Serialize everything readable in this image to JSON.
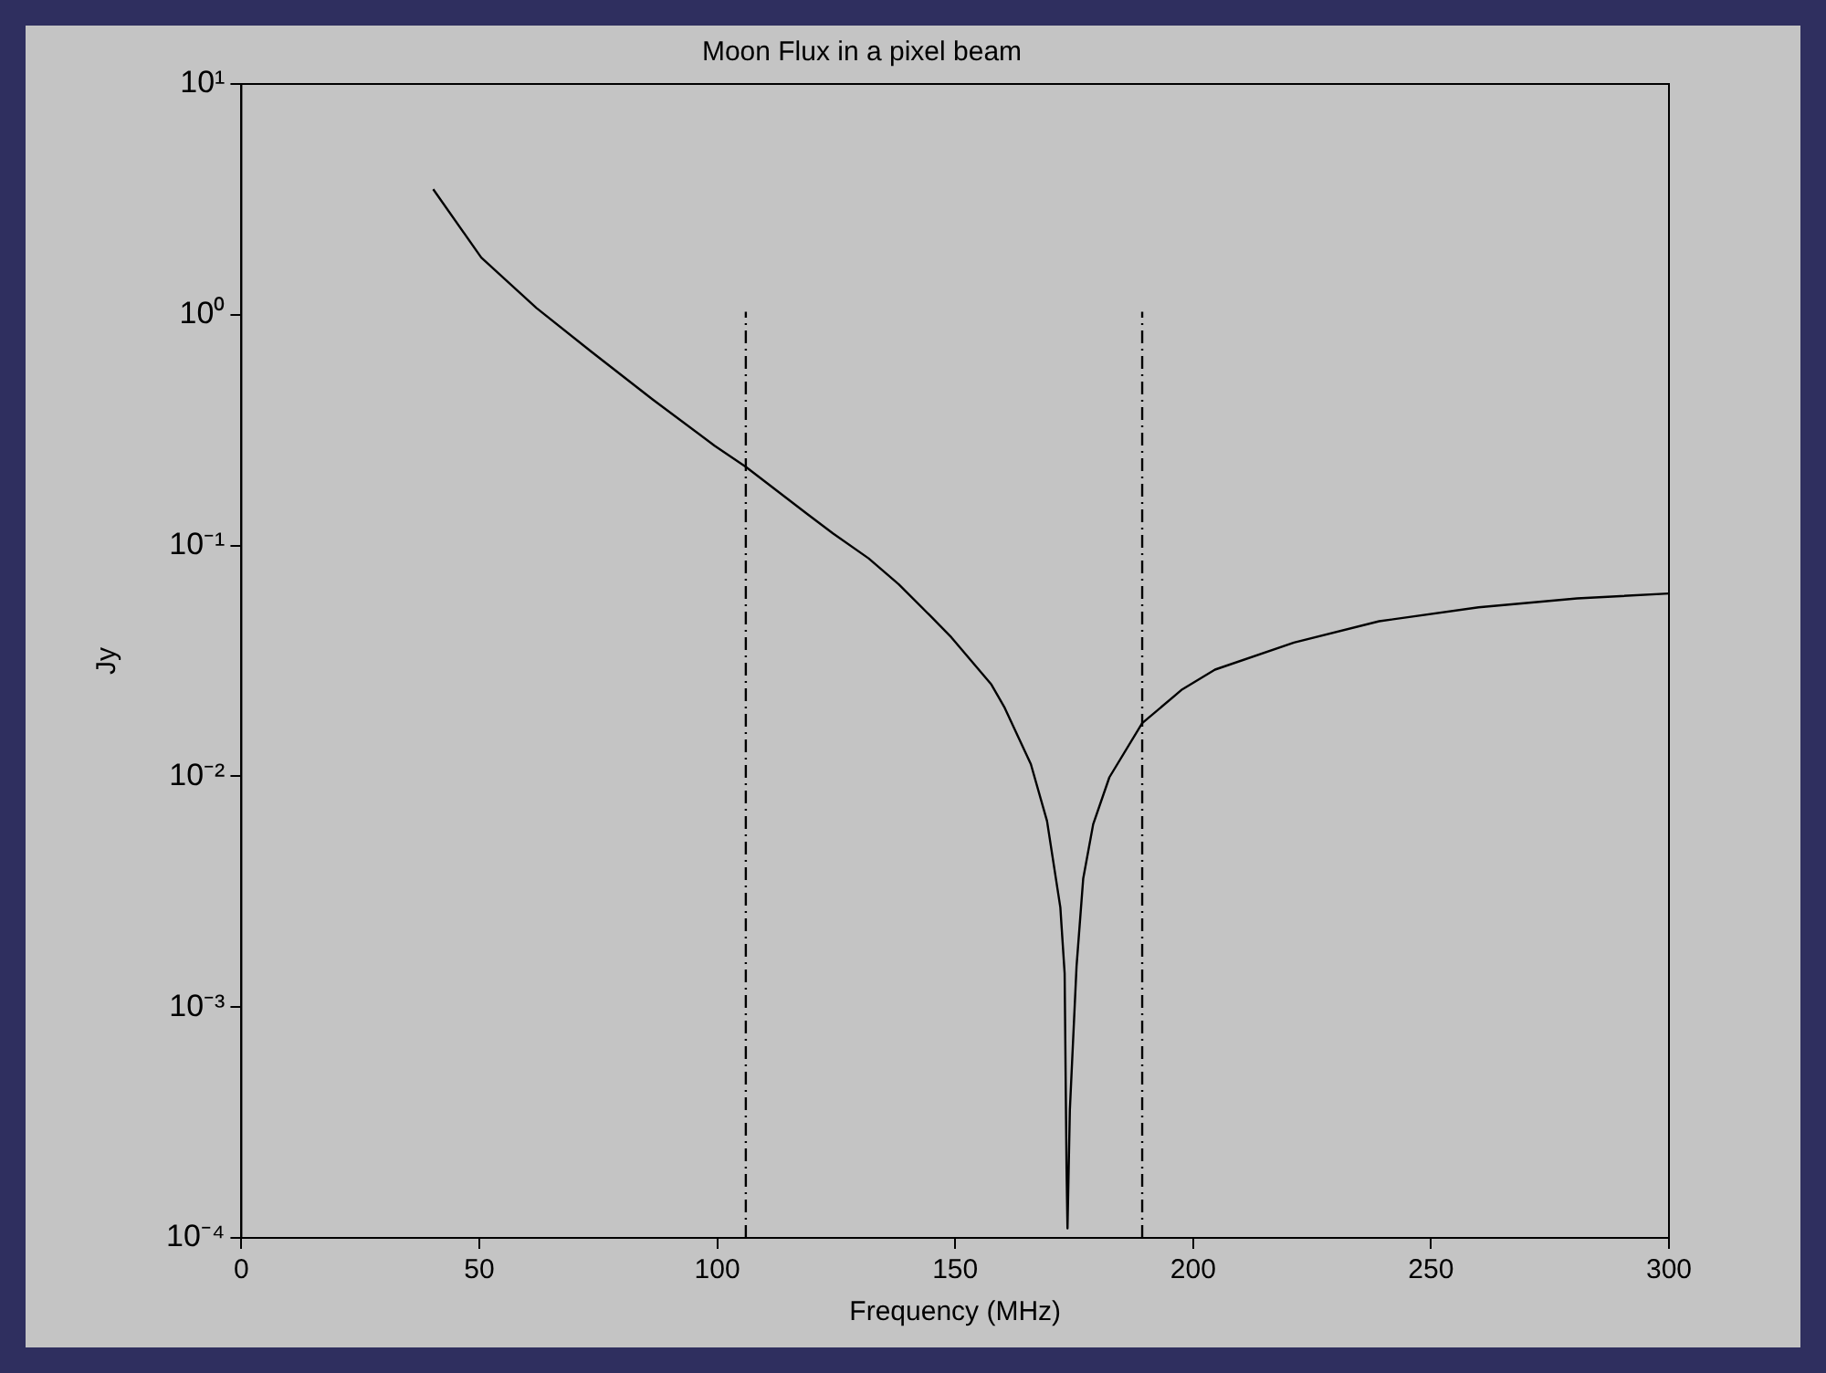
{
  "chart_data": {
    "type": "line",
    "title": "Moon Flux in a pixel beam",
    "xlabel": "Frequency (MHz)",
    "ylabel": "Jy",
    "log": "y",
    "grid": false,
    "legend": false,
    "marker": "none",
    "xlim": [
      0,
      300
    ],
    "xticks": [
      0,
      50,
      100,
      150,
      200,
      250,
      300
    ],
    "ylim": [
      0.0001,
      10
    ],
    "yticks": [
      {
        "value": 10,
        "label": "10¹"
      },
      {
        "value": 1,
        "label": "10⁰"
      },
      {
        "value": 0.1,
        "label": "10⁻¹"
      },
      {
        "value": 0.01,
        "label": "10⁻²"
      },
      {
        "value": 0.001,
        "label": "10⁻³"
      },
      {
        "value": 0.0001,
        "label": "10⁻⁴"
      }
    ],
    "series": [
      {
        "color": "#000000",
        "line_style": "solid",
        "x": [
          40.3,
          50.4,
          62,
          73.6,
          86.4,
          99.5,
          105.9,
          118.9,
          124.3,
          131.8,
          138.1,
          144.6,
          149.2,
          157.6,
          160.3,
          165.9,
          169.3,
          172.1,
          173,
          173.4,
          173.6,
          174.1,
          175.5,
          176.9,
          179,
          182.4,
          189.3,
          197.7,
          204.6,
          221.2,
          239.1,
          260,
          280.7,
          300
        ],
        "values": [
          3.5,
          1.77,
          1.07,
          0.69,
          0.43,
          0.27,
          0.22,
          0.137,
          0.113,
          0.088,
          0.068,
          0.05,
          0.04,
          0.025,
          0.02,
          0.0113,
          0.0064,
          0.0027,
          0.0014,
          0.0002,
          0.00011,
          0.00036,
          0.0015,
          0.0036,
          0.0062,
          0.0099,
          0.017,
          0.0238,
          0.029,
          0.038,
          0.047,
          0.054,
          0.059,
          0.062
        ]
      },
      {
        "color": "#000000",
        "line_style": "dashdot",
        "x": [
          106,
          106
        ],
        "values": [
          0.0001,
          1.03
        ]
      },
      {
        "color": "#000000",
        "line_style": "dashdot",
        "x": [
          189.3,
          189.3
        ],
        "values": [
          0.0001,
          1.03
        ]
      }
    ]
  }
}
